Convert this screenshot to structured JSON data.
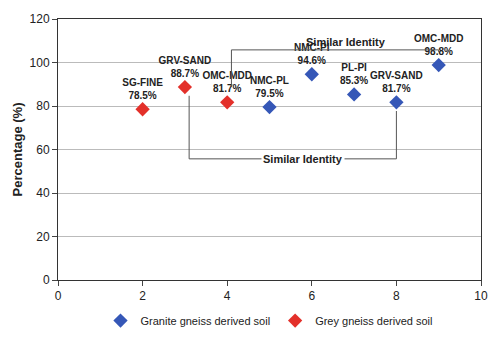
{
  "chart_data": {
    "type": "scatter",
    "y_label": "Percentage (%)",
    "xlim": [
      0,
      10
    ],
    "xticks": [
      0,
      2,
      4,
      6,
      8,
      10
    ],
    "ylim": [
      0,
      120
    ],
    "yticks": [
      0,
      20,
      40,
      60,
      80,
      100,
      120
    ],
    "grid": "y",
    "legend": "bottom",
    "data_labels": true,
    "marker": "diamond",
    "series": [
      {
        "name": "Granite gneiss derived soil",
        "color": "#3557b7",
        "x": [
          5,
          6,
          7,
          8,
          9
        ],
        "values": [
          79.5,
          94.6,
          85.3,
          81.7,
          98.8
        ],
        "labels": [
          "NMC-PL",
          "NMC-PI",
          "PL-PI",
          "GRV-SAND",
          "OMC-MDD"
        ],
        "value_labels": [
          "79.5%",
          "94.6%",
          "85.3%",
          "81.7%",
          "98.8%"
        ]
      },
      {
        "name": "Grey gneiss derived soil",
        "color": "#e3302a",
        "x": [
          2,
          3,
          4
        ],
        "values": [
          78.5,
          88.7,
          81.7
        ],
        "labels": [
          "SG-FINE",
          "GRV-SAND",
          "OMC-MDD"
        ],
        "value_labels": [
          "78.5%",
          "88.7%",
          "81.7%"
        ]
      }
    ],
    "annotations": [
      {
        "text": "Similar Identity",
        "link": "OMC-MDD",
        "side": "above"
      },
      {
        "text": "Similar Identity",
        "link": "GRV-SAND",
        "side": "below"
      }
    ]
  }
}
